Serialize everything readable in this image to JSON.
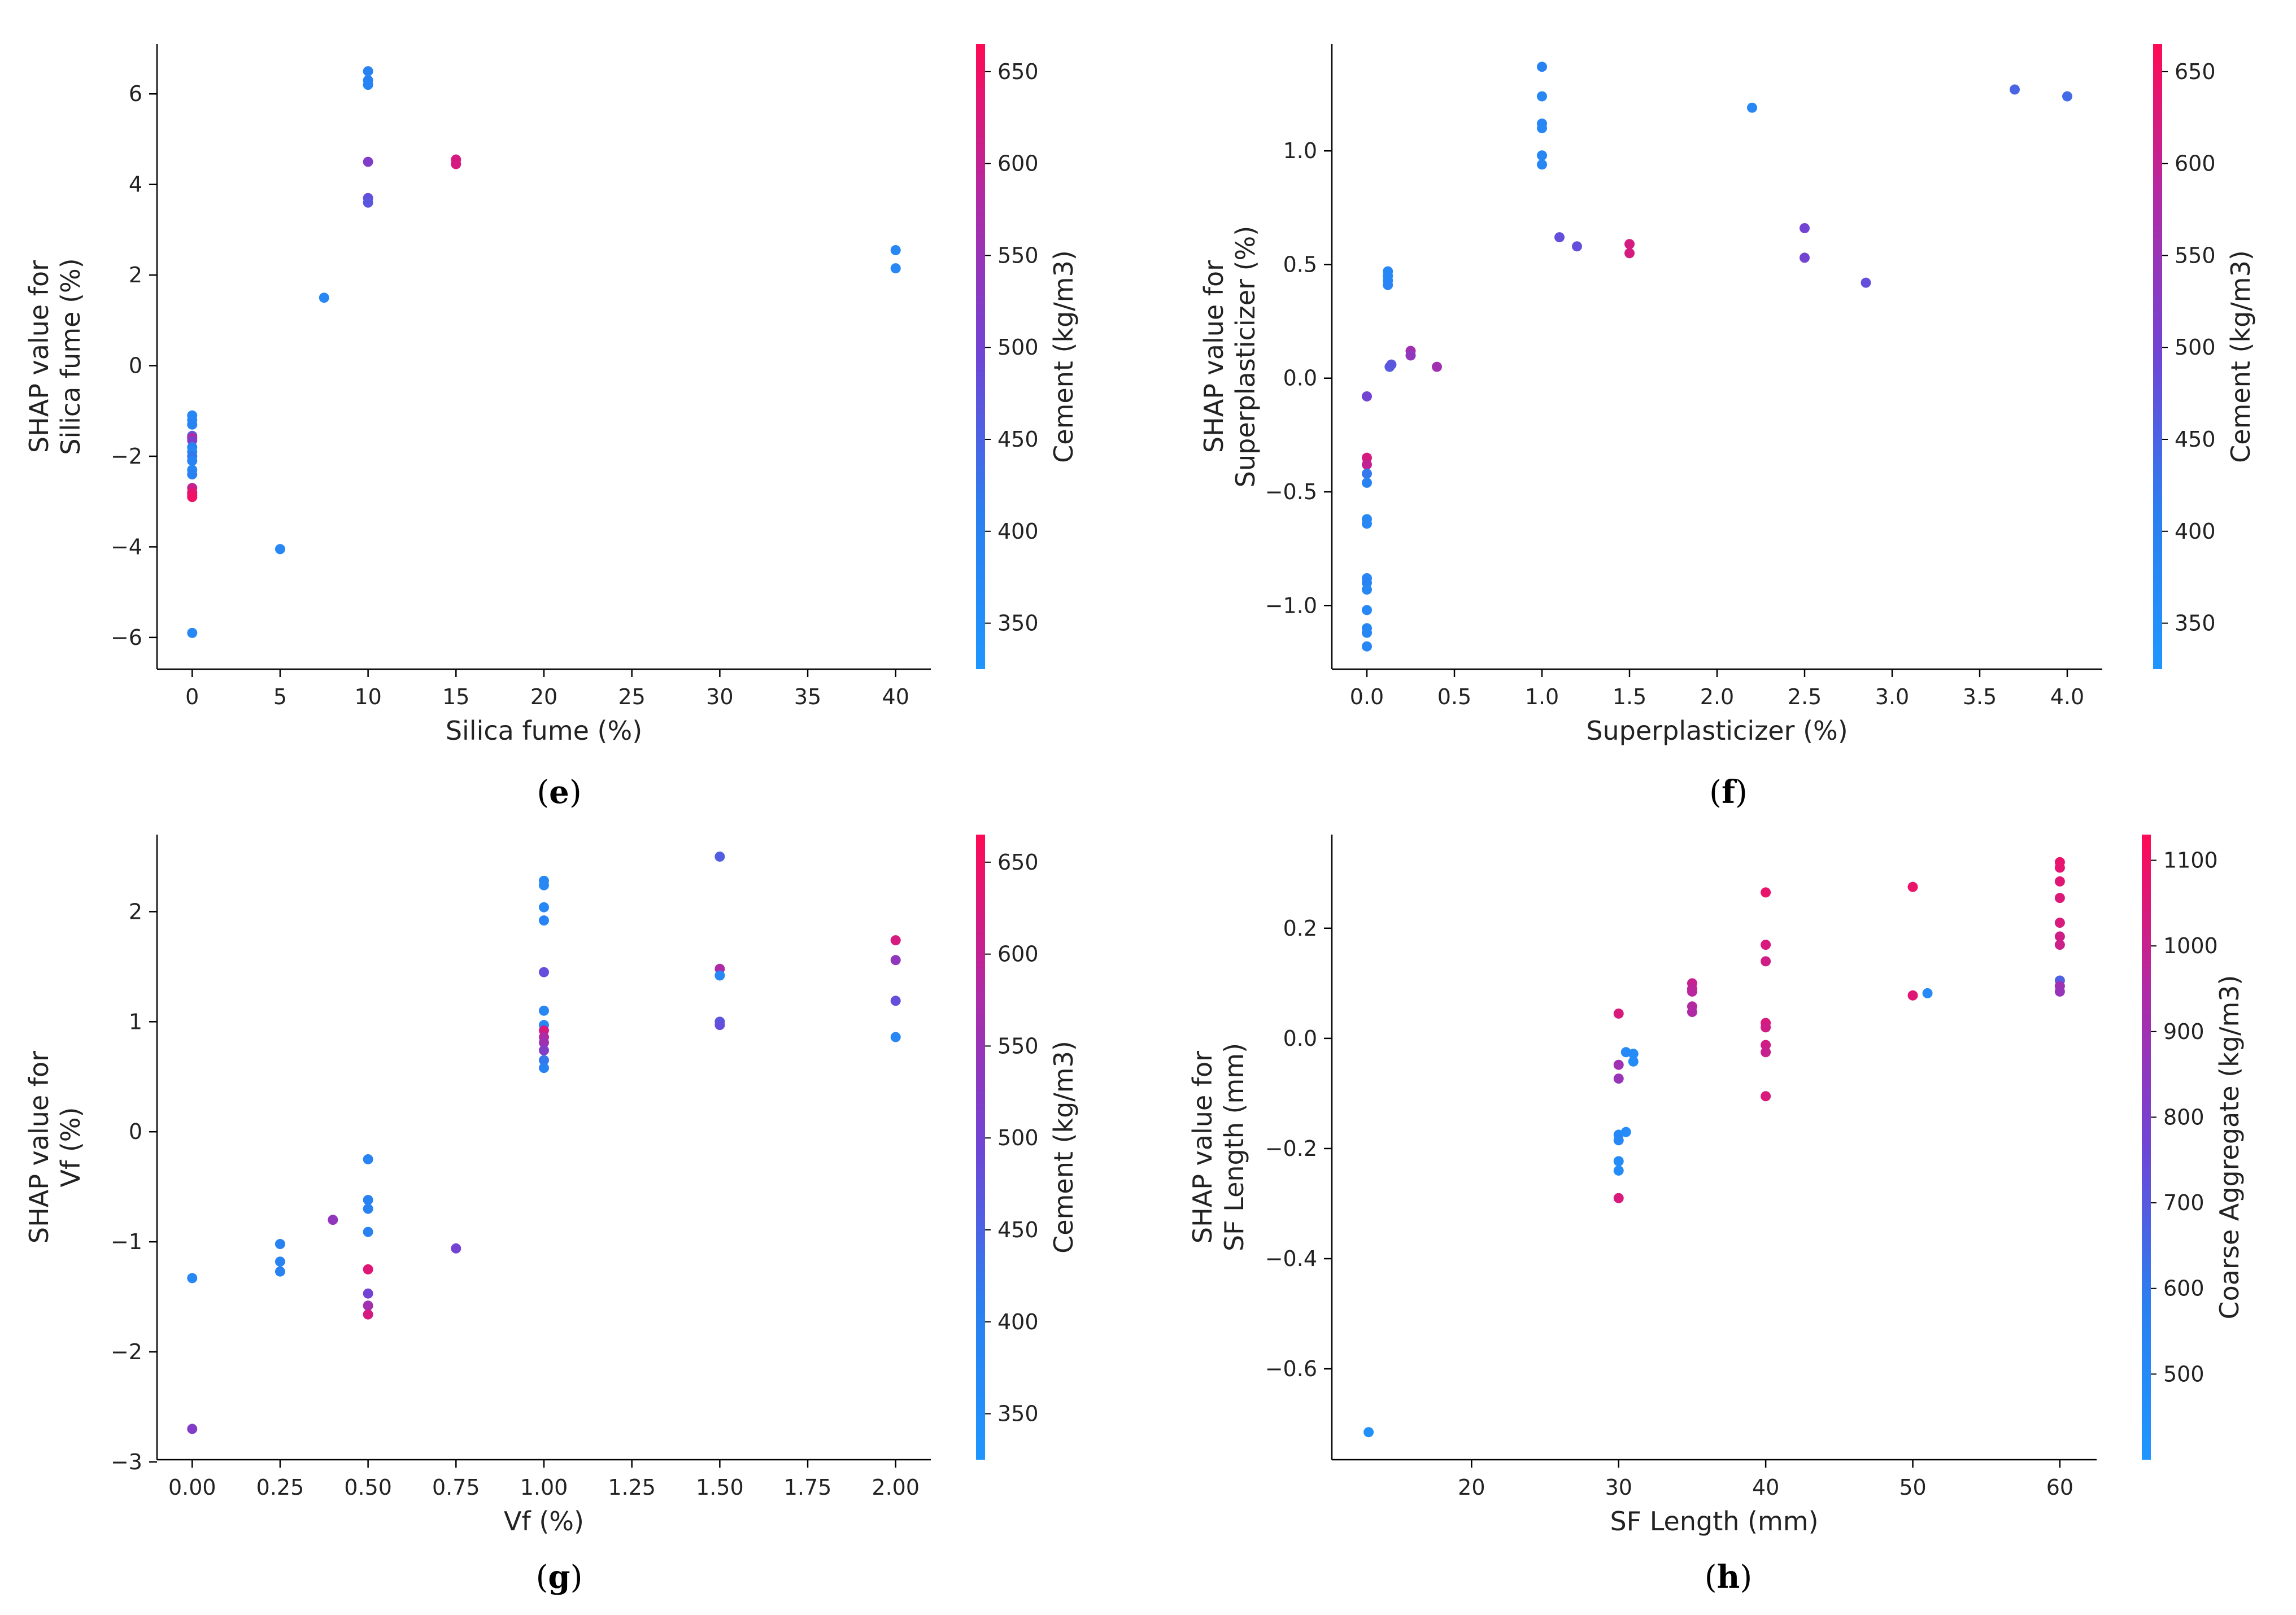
{
  "colorbar_gradient": [
    "#1e96ff",
    "#2b7ff0",
    "#6f45d6",
    "#b02aa6",
    "#ff0a55"
  ],
  "chart_data": [
    {
      "panel": "(e)",
      "caption_letter": "e",
      "type": "scatter",
      "xlabel": "Silica fume (%)",
      "ylabel": "SHAP value for\nSilica fume (%)",
      "xlim": [
        -2,
        42
      ],
      "ylim": [
        -6.7,
        7.1
      ],
      "xticks": [
        0,
        5,
        10,
        15,
        20,
        25,
        30,
        35,
        40
      ],
      "yticks": [
        -6,
        -4,
        -2,
        0,
        2,
        4,
        6
      ],
      "colorbar": {
        "label": "Cement (kg/m3)",
        "min": 325,
        "max": 665,
        "ticks": [
          350,
          400,
          450,
          500,
          550,
          600,
          650
        ]
      },
      "points": [
        [
          0,
          -1.1,
          380
        ],
        [
          0,
          -1.2,
          380
        ],
        [
          0,
          -1.3,
          390
        ],
        [
          0,
          -1.55,
          470
        ],
        [
          0,
          -1.6,
          600
        ],
        [
          0,
          -1.65,
          520
        ],
        [
          0,
          -1.8,
          400
        ],
        [
          0,
          -1.9,
          380
        ],
        [
          0,
          -2.0,
          420
        ],
        [
          0,
          -2.1,
          390
        ],
        [
          0,
          -2.3,
          380
        ],
        [
          0,
          -2.4,
          400
        ],
        [
          0,
          -2.7,
          600
        ],
        [
          0,
          -2.8,
          640
        ],
        [
          0,
          -2.85,
          630
        ],
        [
          0,
          -2.9,
          650
        ],
        [
          0,
          -5.9,
          380
        ],
        [
          5,
          -4.05,
          380
        ],
        [
          7.5,
          1.5,
          380
        ],
        [
          10,
          6.5,
          400
        ],
        [
          10,
          6.3,
          400
        ],
        [
          10,
          6.2,
          390
        ],
        [
          10,
          4.5,
          520
        ],
        [
          10,
          3.7,
          480
        ],
        [
          10,
          3.6,
          470
        ],
        [
          15,
          4.55,
          620
        ],
        [
          15,
          4.45,
          620
        ],
        [
          40,
          2.55,
          380
        ],
        [
          40,
          2.15,
          380
        ]
      ]
    },
    {
      "panel": "(f)",
      "caption_letter": "f",
      "type": "scatter",
      "xlabel": "Superplasticizer (%)",
      "ylabel": "SHAP value for\nSuperplasticizer (%)",
      "xlim": [
        -0.2,
        4.2
      ],
      "ylim": [
        -1.28,
        1.47
      ],
      "xticks": [
        0.0,
        0.5,
        1.0,
        1.5,
        2.0,
        2.5,
        3.0,
        3.5,
        4.0
      ],
      "yticks": [
        -1.0,
        -0.5,
        0.0,
        0.5,
        1.0
      ],
      "colorbar": {
        "label": "Cement (kg/m3)",
        "min": 325,
        "max": 665,
        "ticks": [
          350,
          400,
          450,
          500,
          550,
          600,
          650
        ]
      },
      "points": [
        [
          0,
          -0.08,
          500
        ],
        [
          0,
          -0.35,
          620
        ],
        [
          0,
          -0.38,
          600
        ],
        [
          0,
          -0.42,
          420
        ],
        [
          0,
          -0.46,
          400
        ],
        [
          0,
          -0.62,
          380
        ],
        [
          0,
          -0.64,
          380
        ],
        [
          0,
          -0.88,
          380
        ],
        [
          0,
          -0.9,
          390
        ],
        [
          0,
          -0.93,
          380
        ],
        [
          0,
          -1.02,
          380
        ],
        [
          0,
          -1.1,
          380
        ],
        [
          0,
          -1.12,
          380
        ],
        [
          0,
          -1.18,
          380
        ],
        [
          0.12,
          0.47,
          380
        ],
        [
          0.12,
          0.45,
          380
        ],
        [
          0.12,
          0.43,
          380
        ],
        [
          0.12,
          0.41,
          390
        ],
        [
          0.13,
          0.05,
          460
        ],
        [
          0.14,
          0.06,
          470
        ],
        [
          0.25,
          0.12,
          560
        ],
        [
          0.25,
          0.1,
          540
        ],
        [
          0.4,
          0.05,
          560
        ],
        [
          1.0,
          1.37,
          400
        ],
        [
          1.0,
          1.24,
          380
        ],
        [
          1.0,
          1.12,
          380
        ],
        [
          1.0,
          1.1,
          380
        ],
        [
          1.0,
          0.98,
          380
        ],
        [
          1.0,
          0.94,
          380
        ],
        [
          1.1,
          0.62,
          480
        ],
        [
          1.2,
          0.58,
          480
        ],
        [
          1.5,
          0.59,
          620
        ],
        [
          1.5,
          0.55,
          620
        ],
        [
          2.2,
          1.19,
          380
        ],
        [
          2.5,
          0.66,
          500
        ],
        [
          2.5,
          0.53,
          500
        ],
        [
          2.85,
          0.42,
          480
        ],
        [
          3.7,
          1.27,
          450
        ],
        [
          4.0,
          1.24,
          440
        ]
      ]
    },
    {
      "panel": "(g)",
      "caption_letter": "g",
      "type": "scatter",
      "xlabel": "Vf (%)",
      "ylabel": "SHAP value for\nVf (%)",
      "xlim": [
        -0.1,
        2.1
      ],
      "ylim": [
        -2.98,
        2.7
      ],
      "xticks": [
        0.0,
        0.25,
        0.5,
        0.75,
        1.0,
        1.25,
        1.5,
        1.75,
        2.0
      ],
      "xtick_labels": [
        "0.00",
        "0.25",
        "0.50",
        "0.75",
        "1.00",
        "1.25",
        "1.50",
        "1.75",
        "2.00"
      ],
      "yticks": [
        -3,
        -2,
        -1,
        0,
        1,
        2
      ],
      "colorbar": {
        "label": "Cement (kg/m3)",
        "min": 325,
        "max": 665,
        "ticks": [
          350,
          400,
          450,
          500,
          550,
          600,
          650
        ]
      },
      "points": [
        [
          0,
          -1.33,
          380
        ],
        [
          0,
          -2.7,
          520
        ],
        [
          0.25,
          -1.02,
          400
        ],
        [
          0.25,
          -1.18,
          400
        ],
        [
          0.25,
          -1.27,
          400
        ],
        [
          0.4,
          -0.8,
          540
        ],
        [
          0.5,
          -0.25,
          390
        ],
        [
          0.5,
          -0.62,
          400
        ],
        [
          0.5,
          -0.7,
          400
        ],
        [
          0.5,
          -0.91,
          400
        ],
        [
          0.5,
          -1.25,
          630
        ],
        [
          0.5,
          -1.47,
          500
        ],
        [
          0.5,
          -1.58,
          560
        ],
        [
          0.5,
          -1.66,
          620
        ],
        [
          0.75,
          -1.06,
          500
        ],
        [
          1.0,
          2.28,
          380
        ],
        [
          1.0,
          2.24,
          380
        ],
        [
          1.0,
          2.04,
          380
        ],
        [
          1.0,
          1.92,
          390
        ],
        [
          1.0,
          1.45,
          480
        ],
        [
          1.0,
          1.1,
          380
        ],
        [
          1.0,
          0.97,
          380
        ],
        [
          1.0,
          0.92,
          620
        ],
        [
          1.0,
          0.86,
          580
        ],
        [
          1.0,
          0.81,
          560
        ],
        [
          1.0,
          0.74,
          520
        ],
        [
          1.0,
          0.65,
          420
        ],
        [
          1.0,
          0.58,
          400
        ],
        [
          1.5,
          2.5,
          460
        ],
        [
          1.5,
          1.48,
          580
        ],
        [
          1.5,
          1.42,
          380
        ],
        [
          1.5,
          1.0,
          470
        ],
        [
          1.5,
          0.97,
          480
        ],
        [
          2.0,
          1.74,
          620
        ],
        [
          2.0,
          1.56,
          540
        ],
        [
          2.0,
          1.19,
          480
        ],
        [
          2.0,
          0.86,
          380
        ]
      ]
    },
    {
      "panel": "(h)",
      "caption_letter": "h",
      "type": "scatter",
      "xlabel": "SF Length (mm)",
      "ylabel": "SHAP value for\nSF Length (mm)",
      "xlim": [
        10.5,
        62.5
      ],
      "ylim": [
        -0.765,
        0.37
      ],
      "xticks": [
        20,
        30,
        40,
        50,
        60
      ],
      "yticks": [
        -0.6,
        -0.4,
        -0.2,
        0.0,
        0.2
      ],
      "yticks_decimals": 1,
      "colorbar": {
        "label": "Coarse Aggregate (kg/m3)",
        "min": 400,
        "max": 1130,
        "ticks": [
          500,
          600,
          700,
          800,
          900,
          1000,
          1100
        ]
      },
      "points": [
        [
          13,
          -0.715,
          450
        ],
        [
          30,
          0.045,
          1040
        ],
        [
          30,
          -0.048,
          900
        ],
        [
          30,
          -0.073,
          880
        ],
        [
          30,
          -0.175,
          500
        ],
        [
          30,
          -0.185,
          520
        ],
        [
          30,
          -0.223,
          480
        ],
        [
          30,
          -0.24,
          480
        ],
        [
          30,
          -0.29,
          1040
        ],
        [
          30.5,
          -0.025,
          500
        ],
        [
          30.5,
          -0.17,
          480
        ],
        [
          31,
          -0.028,
          480
        ],
        [
          31,
          -0.042,
          480
        ],
        [
          35,
          0.1,
          1000
        ],
        [
          35,
          0.09,
          980
        ],
        [
          35,
          0.085,
          970
        ],
        [
          35,
          0.058,
          960
        ],
        [
          35,
          0.048,
          950
        ],
        [
          40,
          0.265,
          1080
        ],
        [
          40,
          0.17,
          1040
        ],
        [
          40,
          0.14,
          1020
        ],
        [
          40,
          0.028,
          1040
        ],
        [
          40,
          0.02,
          1020
        ],
        [
          40,
          -0.012,
          1020
        ],
        [
          40,
          -0.025,
          1000
        ],
        [
          40,
          -0.105,
          1040
        ],
        [
          50,
          0.275,
          1080
        ],
        [
          50,
          0.078,
          1060
        ],
        [
          51,
          0.082,
          500
        ],
        [
          60,
          0.32,
          1080
        ],
        [
          60,
          0.31,
          1070
        ],
        [
          60,
          0.285,
          1060
        ],
        [
          60,
          0.255,
          1050
        ],
        [
          60,
          0.21,
          1040
        ],
        [
          60,
          0.185,
          1020
        ],
        [
          60,
          0.17,
          1010
        ],
        [
          60,
          0.105,
          680
        ],
        [
          60,
          0.095,
          900
        ],
        [
          60,
          0.085,
          880
        ]
      ]
    }
  ]
}
